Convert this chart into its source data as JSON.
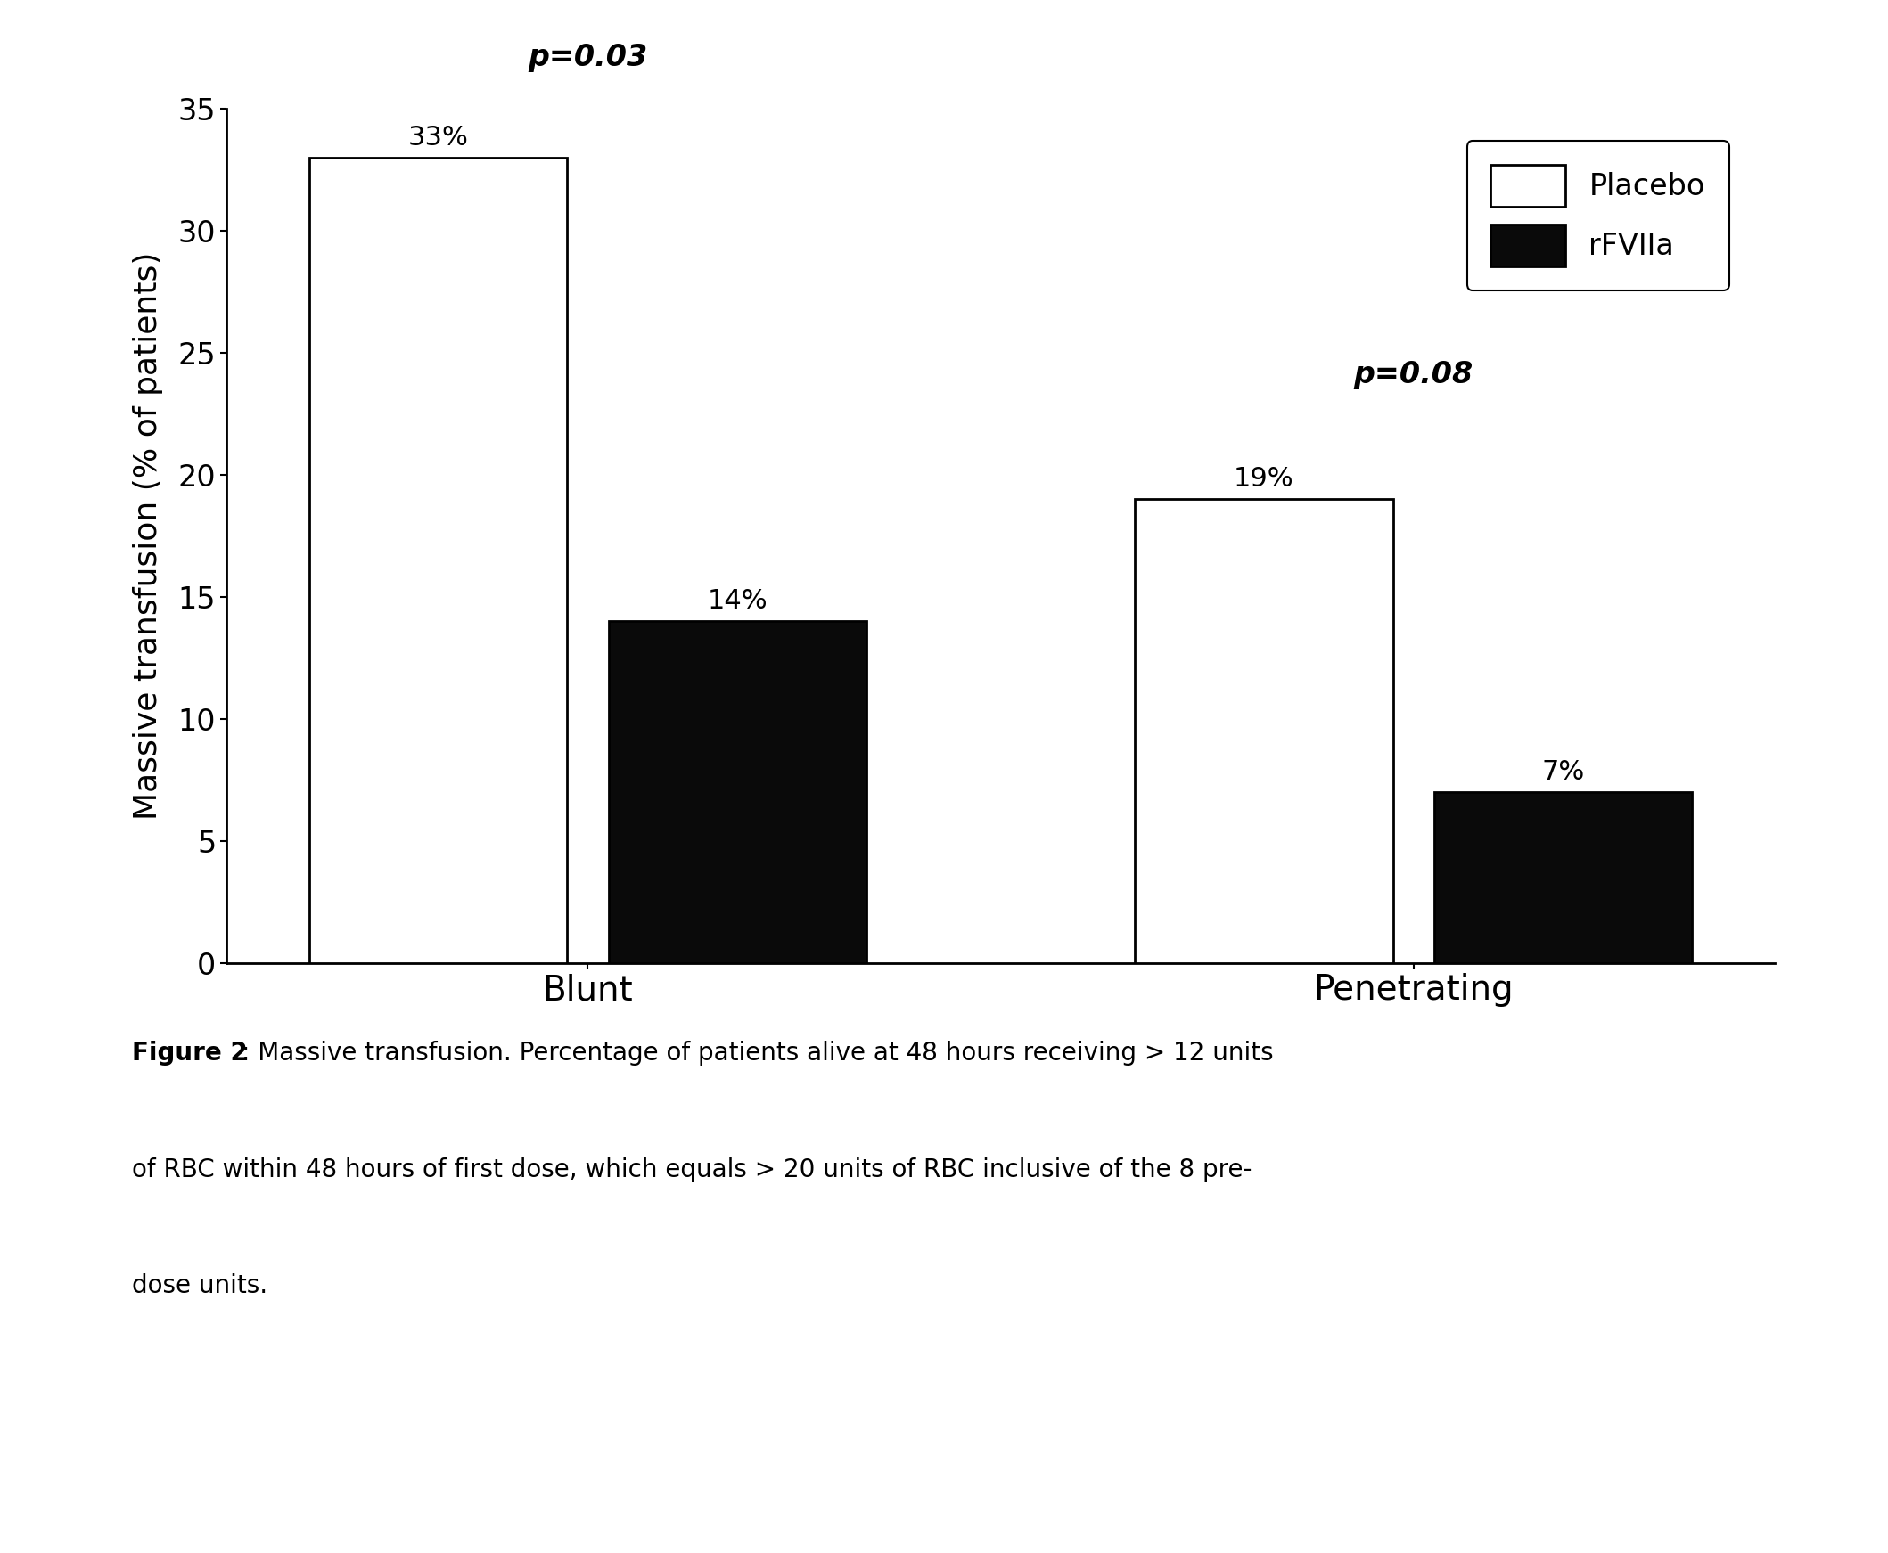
{
  "groups": [
    "Blunt",
    "Penetrating"
  ],
  "placebo_values": [
    33,
    19
  ],
  "rfviia_values": [
    14,
    7
  ],
  "placebo_labels": [
    "33%",
    "19%"
  ],
  "rfviia_labels": [
    "14%",
    "7%"
  ],
  "p_values": [
    "p=0.03",
    "p=0.08"
  ],
  "ylabel": "Massive transfusion (% of patients)",
  "ylim": [
    0,
    35
  ],
  "yticks": [
    0,
    5,
    10,
    15,
    20,
    25,
    30,
    35
  ],
  "bar_width": 0.5,
  "placebo_color": "#ffffff",
  "rfviia_color": "#0a0a0a",
  "bar_edge_color": "#000000",
  "background_color": "#ffffff",
  "legend_labels": [
    "Placebo",
    "rFVIIa"
  ],
  "caption_bold": "Figure 2",
  "caption_line1": ": Massive transfusion. Percentage of patients alive at 48 hours receiving > 12 units",
  "caption_line2": "of RBC within 48 hours of first dose, which equals > 20 units of RBC inclusive of the 8 pre-",
  "caption_line3": "dose units.",
  "fontsize_axis_label": 26,
  "fontsize_tick": 24,
  "fontsize_bar_label": 22,
  "fontsize_p": 24,
  "fontsize_legend": 24,
  "fontsize_caption": 20,
  "fontsize_xtick": 28
}
